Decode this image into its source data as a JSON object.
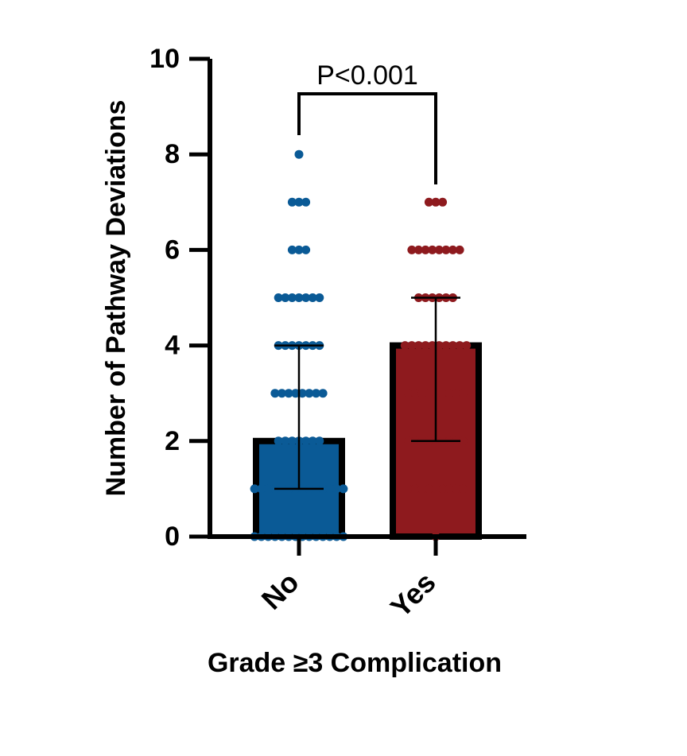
{
  "chart_data": {
    "type": "bar",
    "title": "",
    "xlabel": "Grade ≥3 Complication",
    "ylabel": "Number of Pathway Deviations",
    "ylim": [
      0,
      10
    ],
    "yticks": [
      0,
      2,
      4,
      6,
      8,
      10
    ],
    "grid": false,
    "legend": "none",
    "categories": [
      "No",
      "Yes"
    ],
    "values": [
      2,
      4
    ],
    "error_low": [
      1,
      2
    ],
    "error_high": [
      4,
      5
    ],
    "colors": [
      "#0a5a96",
      "#8e1a1e"
    ],
    "points": [
      [
        {
          "y": 8,
          "n": 1
        },
        {
          "y": 7,
          "n": 3
        },
        {
          "y": 6,
          "n": 3
        },
        {
          "y": 5,
          "n": 7
        },
        {
          "y": 4,
          "n": 7
        },
        {
          "y": 3,
          "n": 8
        },
        {
          "y": 2,
          "n": 7
        },
        {
          "y": 1,
          "n": 14
        },
        {
          "y": 0,
          "n": 14
        }
      ],
      [
        {
          "y": 7,
          "n": 3
        },
        {
          "y": 6,
          "n": 8
        },
        {
          "y": 5,
          "n": 6
        },
        {
          "y": 4,
          "n": 10
        },
        {
          "y": 3,
          "n": 9
        },
        {
          "y": 2,
          "n": 9
        },
        {
          "y": 1,
          "n": 9
        },
        {
          "y": 0,
          "n": 1
        }
      ]
    ],
    "annotation": "P<0.001"
  }
}
